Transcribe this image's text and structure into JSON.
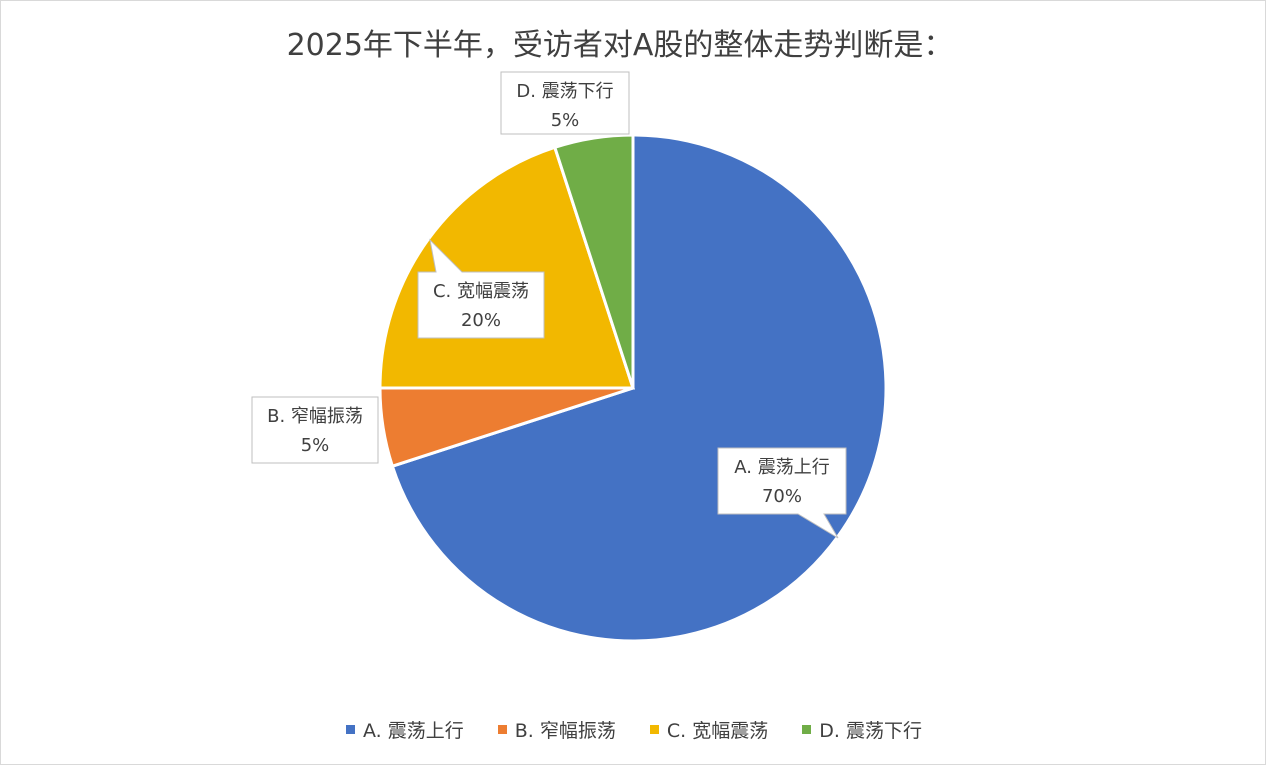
{
  "chart_data": {
    "type": "pie",
    "title": "2025年下半年，受访者对A股的整体走势判断是：",
    "categories": [
      "A. 震荡上行",
      "B. 窄幅振荡",
      "C. 宽幅震荡",
      "D. 震荡下行"
    ],
    "values": [
      70,
      5,
      20,
      5
    ],
    "value_labels": [
      "70%",
      "5%",
      "20%",
      "5%"
    ],
    "colors": [
      "#4472c4",
      "#ed7d31",
      "#f2b800",
      "#70ad47"
    ],
    "legend_position": "bottom",
    "start_angle_deg": 0,
    "direction": "clockwise"
  }
}
